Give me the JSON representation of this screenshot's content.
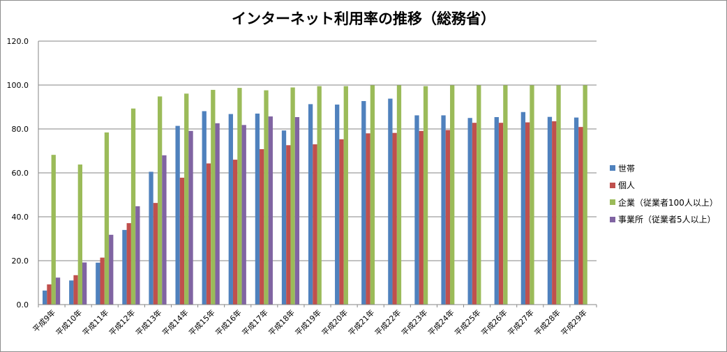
{
  "chart_data": {
    "type": "bar",
    "title": "インターネット利用率の推移（総務省）",
    "xlabel": "",
    "ylabel": "",
    "ylim": [
      0,
      120
    ],
    "yticks": [
      "0.0",
      "20.0",
      "40.0",
      "60.0",
      "80.0",
      "100.0",
      "120.0"
    ],
    "grid": true,
    "legend_position": "right",
    "categories": [
      "平成9年",
      "平成10年",
      "平成11年",
      "平成12年",
      "平成13年",
      "平成14年",
      "平成15年",
      "平成16年",
      "平成17年",
      "平成18年",
      "平成19年",
      "平成20年",
      "平成21年",
      "平成22年",
      "平成23年",
      "平成24年",
      "平成25年",
      "平成26年",
      "平成27年",
      "平成28年",
      "平成29年"
    ],
    "series": [
      {
        "name": "世帯",
        "color": "#4f81bd",
        "values": [
          6.4,
          11.0,
          19.1,
          34.0,
          60.5,
          81.4,
          88.1,
          86.8,
          87.0,
          79.3,
          91.3,
          91.1,
          92.7,
          93.8,
          86.2,
          86.2,
          85.0,
          85.4,
          87.7,
          85.5,
          85.2
        ]
      },
      {
        "name": "個人",
        "color": "#c0504d",
        "values": [
          9.2,
          13.4,
          21.4,
          37.1,
          46.3,
          57.8,
          64.3,
          66.0,
          70.8,
          72.6,
          73.0,
          75.3,
          78.0,
          78.2,
          79.1,
          79.5,
          82.8,
          82.8,
          83.0,
          83.5,
          80.9
        ]
      },
      {
        "name": "企業（従業者100人以上）",
        "color": "#9bbb59",
        "values": [
          68.2,
          63.8,
          78.4,
          89.3,
          94.8,
          96.1,
          97.8,
          98.7,
          97.6,
          98.9,
          99.5,
          99.5,
          99.9,
          99.9,
          99.5,
          99.9,
          99.9,
          99.9,
          99.9,
          99.9,
          99.9
        ]
      },
      {
        "name": "事業所（従業者5人以上）",
        "color": "#8064a2",
        "values": [
          12.3,
          19.2,
          31.8,
          44.8,
          68.0,
          79.1,
          82.6,
          81.8,
          85.7,
          85.4,
          null,
          null,
          null,
          null,
          null,
          null,
          null,
          null,
          null,
          null,
          null
        ]
      }
    ]
  }
}
